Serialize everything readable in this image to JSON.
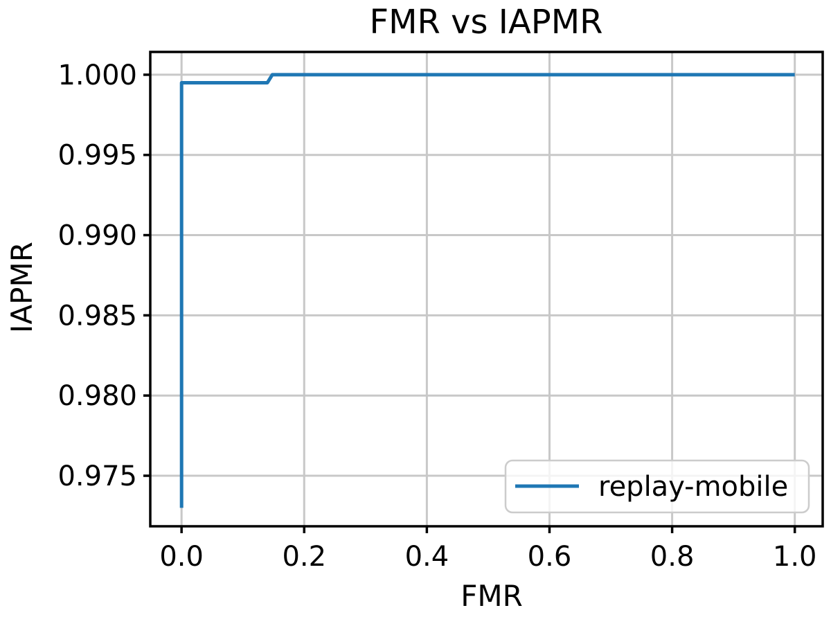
{
  "chart_data": {
    "type": "line",
    "title": "FMR vs IAPMR",
    "xlabel": "FMR",
    "ylabel": "IAPMR",
    "xlim": [
      -0.051,
      1.0455
    ],
    "ylim": [
      0.97185,
      1.00142
    ],
    "grid": true,
    "background_color": "#ffffff",
    "grid_color": "#c8c8c8",
    "spine_color": "#000000",
    "xticks": {
      "values": [
        0.0,
        0.2,
        0.4,
        0.6,
        0.8,
        1.0
      ],
      "labels": [
        "0.0",
        "0.2",
        "0.4",
        "0.6",
        "0.8",
        "1.0"
      ]
    },
    "yticks": {
      "values": [
        0.975,
        0.98,
        0.985,
        0.99,
        0.995,
        1.0
      ],
      "labels": [
        "0.975",
        "0.980",
        "0.985",
        "0.990",
        "0.995",
        "1.000"
      ]
    },
    "legend": {
      "position": "lower right",
      "entries": [
        "replay-mobile"
      ],
      "border_color": "#cccccc",
      "background_color": "rgba(255,255,255,0.8)"
    },
    "series": [
      {
        "name": "replay-mobile",
        "color": "#1f77b4",
        "x": [
          0.0,
          0.0,
          0.14,
          0.148,
          1.0
        ],
        "y": [
          0.973,
          0.9995,
          0.9995,
          1.0,
          1.0
        ]
      }
    ]
  }
}
